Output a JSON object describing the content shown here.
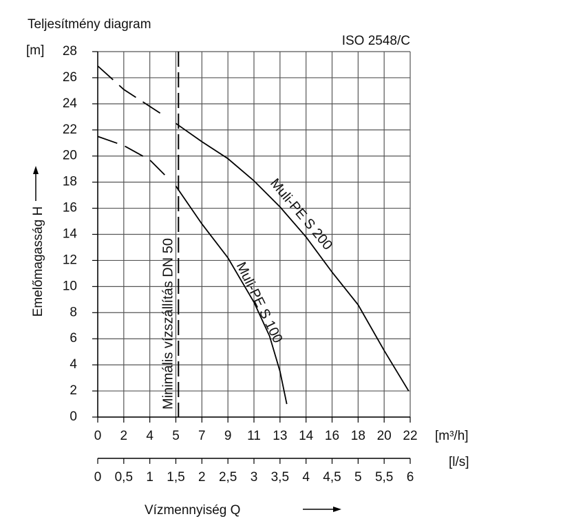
{
  "chart_data": {
    "type": "line",
    "title": "Teljesítmény diagram",
    "subtitle": "ISO 2548/C",
    "y_unit": "[m]",
    "y_label": "Emelőmagasság H",
    "x_unit": "[l/s]",
    "x2_unit": "[m³/h]",
    "x_label": "Vízmennyiség Q",
    "xlim": [
      0,
      6
    ],
    "ylim": [
      0,
      28
    ],
    "yticks": [
      0,
      2,
      4,
      6,
      8,
      10,
      12,
      14,
      16,
      18,
      20,
      22,
      24,
      26,
      28
    ],
    "xticks": [
      0,
      {
        "value": 0.5,
        "label": "0,5"
      },
      1,
      {
        "value": 1.5,
        "label": "1,5"
      },
      2,
      {
        "value": 2.5,
        "label": "2,5"
      },
      3,
      {
        "value": 3.5,
        "label": "3,5"
      },
      4,
      {
        "value": 4.5,
        "label": "4,5"
      },
      5,
      {
        "value": 5.5,
        "label": "5,5"
      },
      6
    ],
    "x2ticks": [
      {
        "value": 0,
        "label": "0"
      },
      {
        "value": 0.5,
        "label": "2"
      },
      {
        "value": 1,
        "label": "4"
      },
      {
        "value": 1.5,
        "label": "5"
      },
      {
        "value": 2,
        "label": "7"
      },
      {
        "value": 2.5,
        "label": "9"
      },
      {
        "value": 3,
        "label": "11"
      },
      {
        "value": 3.5,
        "label": "13"
      },
      {
        "value": 4,
        "label": "14"
      },
      {
        "value": 4.5,
        "label": "16"
      },
      {
        "value": 5,
        "label": "18"
      },
      {
        "value": 5.5,
        "label": "20"
      },
      {
        "value": 6,
        "label": "22"
      }
    ],
    "grid": true,
    "min_flow": {
      "value": 1.55,
      "label": "Minimális vízszállítás  DN 50"
    },
    "dashed_until": 1.5,
    "series": [
      {
        "name": "Muli-PE S 200",
        "color": "#000000",
        "x": [
          0,
          0.5,
          1,
          1.5,
          2,
          2.5,
          3,
          3.5,
          4,
          4.5,
          5,
          5.5,
          5.97
        ],
        "values": [
          26.9,
          25.1,
          23.8,
          22.5,
          21.1,
          19.8,
          18.1,
          16.1,
          13.8,
          11.1,
          8.6,
          5.1,
          2
        ]
      },
      {
        "name": "Muli-PE S 100",
        "color": "#000000",
        "x": [
          0,
          0.5,
          1,
          1.5,
          2,
          2.5,
          3,
          3.3,
          3.5,
          3.63
        ],
        "values": [
          21.5,
          20.8,
          19.7,
          17.7,
          14.8,
          12.2,
          8.8,
          6.2,
          3.5,
          1
        ]
      }
    ]
  }
}
